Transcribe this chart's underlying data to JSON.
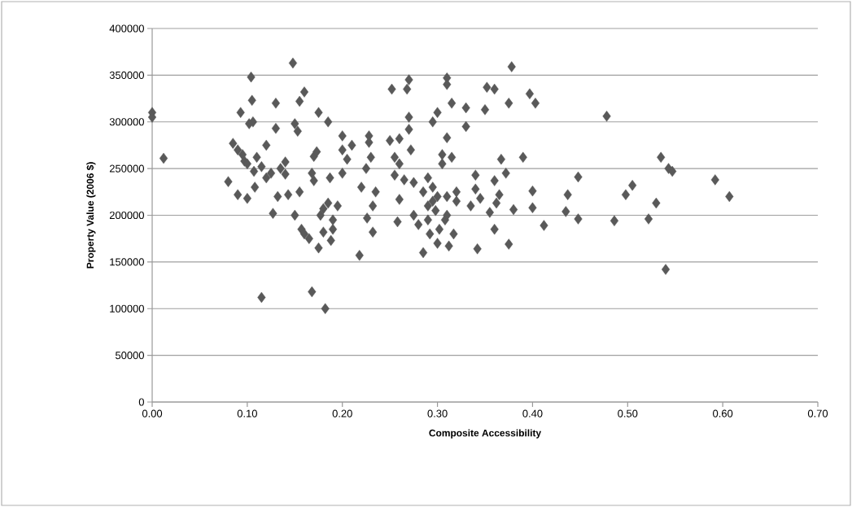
{
  "chart_data": {
    "type": "scatter",
    "xlabel": "Composite Accessibility",
    "ylabel": "Property Value (2006 $)",
    "xlim": [
      0,
      0.7
    ],
    "xticks": [
      {
        "value": 0,
        "label": "0.00"
      },
      {
        "value": 0.1,
        "label": "0.10"
      },
      {
        "value": 0.2,
        "label": "0.20"
      },
      {
        "value": 0.3,
        "label": "0.30"
      },
      {
        "value": 0.4,
        "label": "0.40"
      },
      {
        "value": 0.5,
        "label": "0.50"
      },
      {
        "value": 0.6,
        "label": "0.60"
      },
      {
        "value": 0.7,
        "label": "0.70"
      }
    ],
    "ylim": [
      0,
      400000
    ],
    "yticks": [
      0,
      50000,
      100000,
      150000,
      200000,
      250000,
      300000,
      350000,
      400000
    ],
    "grid": "y",
    "marker": "diamond",
    "color": "#595959",
    "x": [
      0.0,
      0.0,
      0.012,
      0.08,
      0.085,
      0.09,
      0.09,
      0.093,
      0.095,
      0.097,
      0.1,
      0.1,
      0.102,
      0.104,
      0.105,
      0.106,
      0.107,
      0.108,
      0.11,
      0.115,
      0.115,
      0.12,
      0.12,
      0.125,
      0.127,
      0.13,
      0.13,
      0.132,
      0.135,
      0.14,
      0.14,
      0.143,
      0.148,
      0.15,
      0.15,
      0.153,
      0.155,
      0.155,
      0.157,
      0.16,
      0.16,
      0.165,
      0.168,
      0.168,
      0.17,
      0.17,
      0.173,
      0.175,
      0.175,
      0.177,
      0.18,
      0.18,
      0.182,
      0.185,
      0.185,
      0.187,
      0.188,
      0.19,
      0.19,
      0.195,
      0.2,
      0.2,
      0.2,
      0.205,
      0.21,
      0.218,
      0.22,
      0.225,
      0.226,
      0.228,
      0.228,
      0.23,
      0.232,
      0.232,
      0.235,
      0.25,
      0.252,
      0.255,
      0.255,
      0.258,
      0.26,
      0.26,
      0.26,
      0.265,
      0.268,
      0.27,
      0.27,
      0.27,
      0.272,
      0.275,
      0.275,
      0.28,
      0.285,
      0.285,
      0.29,
      0.29,
      0.29,
      0.292,
      0.295,
      0.295,
      0.295,
      0.298,
      0.3,
      0.3,
      0.3,
      0.302,
      0.305,
      0.305,
      0.308,
      0.31,
      0.31,
      0.31,
      0.31,
      0.31,
      0.312,
      0.315,
      0.315,
      0.317,
      0.32,
      0.32,
      0.33,
      0.33,
      0.335,
      0.34,
      0.34,
      0.342,
      0.345,
      0.35,
      0.352,
      0.355,
      0.36,
      0.36,
      0.36,
      0.362,
      0.365,
      0.367,
      0.372,
      0.375,
      0.375,
      0.378,
      0.38,
      0.39,
      0.397,
      0.4,
      0.4,
      0.403,
      0.412,
      0.435,
      0.437,
      0.448,
      0.448,
      0.478,
      0.486,
      0.498,
      0.505,
      0.522,
      0.53,
      0.535,
      0.54,
      0.543,
      0.547,
      0.592,
      0.607
    ],
    "values": [
      310000,
      305000,
      261000,
      236000,
      277000,
      270000,
      222000,
      310000,
      265000,
      258000,
      218000,
      255000,
      298000,
      348000,
      323000,
      300000,
      247000,
      230000,
      262000,
      252000,
      112000,
      275000,
      240000,
      245000,
      202000,
      293000,
      320000,
      220000,
      250000,
      257000,
      244000,
      222000,
      363000,
      298000,
      200000,
      290000,
      322000,
      225000,
      185000,
      332000,
      180000,
      175000,
      245000,
      118000,
      237000,
      263000,
      268000,
      310000,
      165000,
      200000,
      207000,
      182000,
      100000,
      300000,
      213000,
      240000,
      173000,
      195000,
      185000,
      210000,
      285000,
      270000,
      245000,
      260000,
      275000,
      157000,
      230000,
      250000,
      197000,
      285000,
      278000,
      262000,
      210000,
      182000,
      225000,
      280000,
      335000,
      262000,
      243000,
      193000,
      282000,
      255000,
      217000,
      238000,
      335000,
      345000,
      305000,
      292000,
      270000,
      235000,
      200000,
      190000,
      160000,
      225000,
      240000,
      210000,
      195000,
      180000,
      300000,
      230000,
      215000,
      205000,
      310000,
      220000,
      170000,
      185000,
      255000,
      265000,
      195000,
      347000,
      340000,
      283000,
      220000,
      200000,
      167000,
      320000,
      262000,
      180000,
      225000,
      215000,
      295000,
      315000,
      210000,
      243000,
      228000,
      164000,
      218000,
      313000,
      337000,
      203000,
      335000,
      237000,
      185000,
      213000,
      222000,
      260000,
      245000,
      320000,
      169000,
      359000,
      206000,
      262000,
      330000,
      208000,
      226000,
      320000,
      189000,
      204000,
      222000,
      196000,
      241000,
      306000,
      194000,
      222000,
      232000,
      196000,
      213000,
      262000,
      142000,
      250000,
      247000,
      238000,
      220000
    ]
  }
}
